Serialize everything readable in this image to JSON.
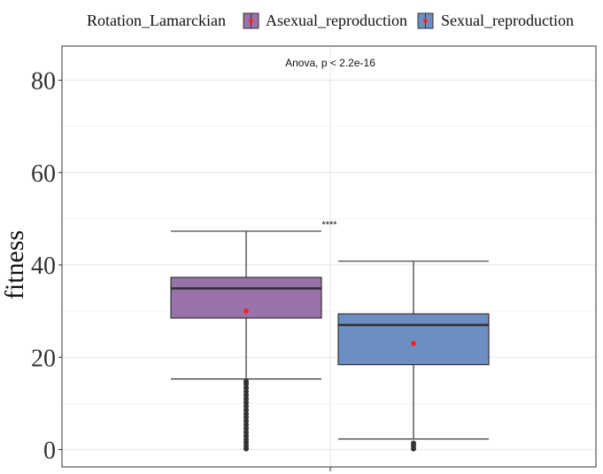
{
  "chart_data": {
    "type": "box",
    "ylabel": "fitness",
    "xlabel": "",
    "ylim": [
      -3,
      87
    ],
    "yticks": [
      0,
      20,
      40,
      60,
      80
    ],
    "grid": true,
    "legend": {
      "title": "Rotation_Lamarckian",
      "position": "top",
      "entries": [
        "Asexual_reproduction",
        "Sexual_reproduction"
      ]
    },
    "annotations": {
      "test": "Anova, p < 2.2e-16",
      "significance": "****"
    },
    "mean_marker_color": "#ff2222",
    "series": [
      {
        "name": "Asexual_reproduction",
        "color": "#9872a8",
        "whisker_low": 15.3,
        "q1": 28.5,
        "median": 34.9,
        "q3": 37.3,
        "whisker_high": 47.3,
        "mean": 30.0,
        "outliers": [
          0.2,
          0.8,
          1.5,
          2.2,
          3.0,
          3.8,
          4.6,
          5.4,
          6.2,
          7.0,
          7.8,
          8.6,
          9.4,
          10.2,
          11.0,
          11.8,
          12.6,
          13.4,
          14.2,
          14.8
        ]
      },
      {
        "name": "Sexual_reproduction",
        "color": "#6b8fc3",
        "whisker_low": 2.3,
        "q1": 18.4,
        "median": 27.0,
        "q3": 29.4,
        "whisker_high": 40.8,
        "mean": 23.0,
        "outliers": [
          0.2,
          0.8,
          1.4
        ]
      }
    ]
  }
}
